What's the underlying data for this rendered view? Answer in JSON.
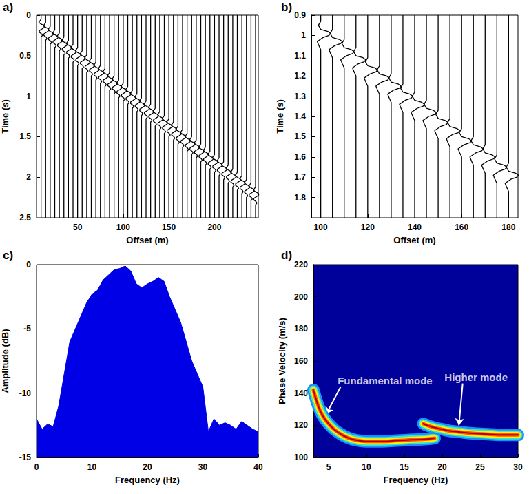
{
  "chart_data": [
    {
      "type": "wiggle",
      "label": "a)",
      "x_label": "Offset (m)",
      "y_label": "Time (s)",
      "color": "#000000",
      "grid": false,
      "xlim": [
        5,
        248
      ],
      "xticks": [
        50,
        100,
        150,
        200
      ],
      "ylim": [
        0,
        2.5
      ],
      "yticks": [
        0,
        0.5,
        1,
        1.5,
        2,
        2.5
      ],
      "x": [
        10,
        15,
        20,
        25,
        30,
        35,
        40,
        45,
        50,
        55,
        60,
        65,
        70,
        75,
        80,
        85,
        90,
        95,
        100,
        105,
        110,
        115,
        120,
        125,
        130,
        135,
        140,
        145,
        150,
        155,
        160,
        165,
        170,
        175,
        180,
        185,
        190,
        195,
        200,
        205,
        210,
        215,
        220,
        225,
        230,
        235,
        240,
        245
      ],
      "values": [
        0.11,
        0.15,
        0.2,
        0.24,
        0.28,
        0.33,
        0.37,
        0.42,
        0.46,
        0.5,
        0.55,
        0.59,
        0.64,
        0.68,
        0.72,
        0.77,
        0.81,
        0.86,
        0.9,
        0.94,
        0.99,
        1.03,
        1.08,
        1.12,
        1.16,
        1.21,
        1.25,
        1.3,
        1.34,
        1.38,
        1.43,
        1.47,
        1.52,
        1.56,
        1.6,
        1.65,
        1.69,
        1.74,
        1.78,
        1.82,
        1.87,
        1.91,
        1.96,
        2.0,
        2.04,
        2.09,
        2.13,
        2.18
      ],
      "wavelet": {
        "dt": [
          -0.06,
          -0.04,
          -0.02,
          0,
          0.02,
          0.04,
          0.06,
          0.08,
          0.1,
          0.12,
          0.14,
          0.16
        ],
        "amplitude": [
          0,
          -1.2,
          -2.5,
          0,
          3.2,
          3.5,
          1,
          -1.8,
          -2,
          0.5,
          1.5,
          0
        ]
      }
    },
    {
      "type": "wiggle",
      "label": "b)",
      "x_label": "Offset (m)",
      "y_label": "Time (s)",
      "color": "#000000",
      "grid": false,
      "xlim": [
        96,
        184
      ],
      "xticks": [
        100,
        120,
        140,
        160,
        180
      ],
      "ylim": [
        0.9,
        1.9
      ],
      "yticks": [
        0.9,
        1,
        1.1,
        1.2,
        1.3,
        1.4,
        1.5,
        1.6,
        1.7,
        1.8
      ],
      "x": [
        100,
        105,
        110,
        115,
        120,
        125,
        130,
        135,
        140,
        145,
        150,
        155,
        160,
        165,
        170,
        175,
        180
      ],
      "values": [
        0.97,
        1.01,
        1.06,
        1.1,
        1.15,
        1.19,
        1.23,
        1.28,
        1.32,
        1.36,
        1.41,
        1.45,
        1.5,
        1.54,
        1.58,
        1.63,
        1.67
      ],
      "wavelet": {
        "dt": [
          -0.04,
          -0.02,
          0,
          0.01,
          0.02,
          0.03,
          0.04,
          0.06,
          0.08,
          0.1
        ],
        "amplitude": [
          0,
          -1,
          0,
          3,
          4.2,
          3.5,
          1,
          -1.5,
          -0.8,
          0
        ]
      }
    },
    {
      "type": "area",
      "label": "c)",
      "x_label": "Frequency (Hz)",
      "y_label": "Amplitude (dB)",
      "color": "#0000e6",
      "grid": false,
      "xlim": [
        0,
        40
      ],
      "xticks": [
        0,
        10,
        20,
        30,
        40
      ],
      "ylim": [
        -15,
        0
      ],
      "yticks": [
        -15,
        -10,
        -5,
        0
      ],
      "x": [
        0,
        1,
        2,
        3,
        4,
        5,
        6,
        7,
        8,
        9,
        10,
        11,
        12,
        13,
        14,
        15,
        16,
        17,
        18,
        19,
        20,
        21,
        22,
        23,
        24,
        25,
        26,
        27,
        28,
        29,
        30,
        31,
        32,
        33,
        34,
        35,
        36,
        37,
        38,
        39,
        40
      ],
      "values": [
        -12,
        -12.8,
        -12.4,
        -12.6,
        -11,
        -8.5,
        -6,
        -5,
        -4,
        -3,
        -2.3,
        -2,
        -1.2,
        -0.8,
        -0.4,
        -0.3,
        -0.1,
        -0.5,
        -1.5,
        -1.8,
        -1.5,
        -1.3,
        -1,
        -1.3,
        -2.5,
        -3.5,
        -4.5,
        -6,
        -7.5,
        -8.5,
        -9.5,
        -13,
        -12,
        -12.5,
        -12.3,
        -12.5,
        -12.8,
        -12.2,
        -12.5,
        -12.8,
        -13
      ]
    },
    {
      "type": "line",
      "label": "d)",
      "x_label": "Frequency (Hz)",
      "y_label": "Phase Velocity (m/s)",
      "grid": false,
      "xlim": [
        3,
        30
      ],
      "xticks": [
        5,
        10,
        15,
        20,
        25,
        30
      ],
      "ylim": [
        100,
        220
      ],
      "yticks": [
        100,
        120,
        140,
        160,
        180,
        200,
        220
      ],
      "series": [
        {
          "color": "#b00000",
          "x": [
            3,
            3.5,
            4,
            4.5,
            5,
            5.5,
            6,
            7,
            8,
            9,
            10,
            12,
            14,
            16,
            18,
            19
          ],
          "values": [
            142,
            134,
            128,
            124,
            121,
            118.5,
            116.5,
            113.5,
            111.5,
            110.5,
            110,
            110,
            110.5,
            111,
            111.5,
            112
          ]
        },
        {
          "color": "#b00000",
          "x": [
            17.5,
            18,
            19,
            20,
            21,
            22,
            24,
            26,
            28,
            30
          ],
          "values": [
            121,
            120,
            118.5,
            117.5,
            116.5,
            116,
            115,
            114.5,
            114,
            114
          ]
        }
      ],
      "annotations": [
        {
          "text": "Fundamental mode",
          "x": 6.2,
          "y": 148,
          "arrow_from": [
            6.6,
            144
          ],
          "arrow_to": [
            4.7,
            127
          ]
        },
        {
          "text": "Higher mode",
          "x": 20.3,
          "y": 150,
          "arrow_from": [
            22.7,
            146
          ],
          "arrow_to": [
            22.2,
            120
          ]
        }
      ]
    }
  ]
}
